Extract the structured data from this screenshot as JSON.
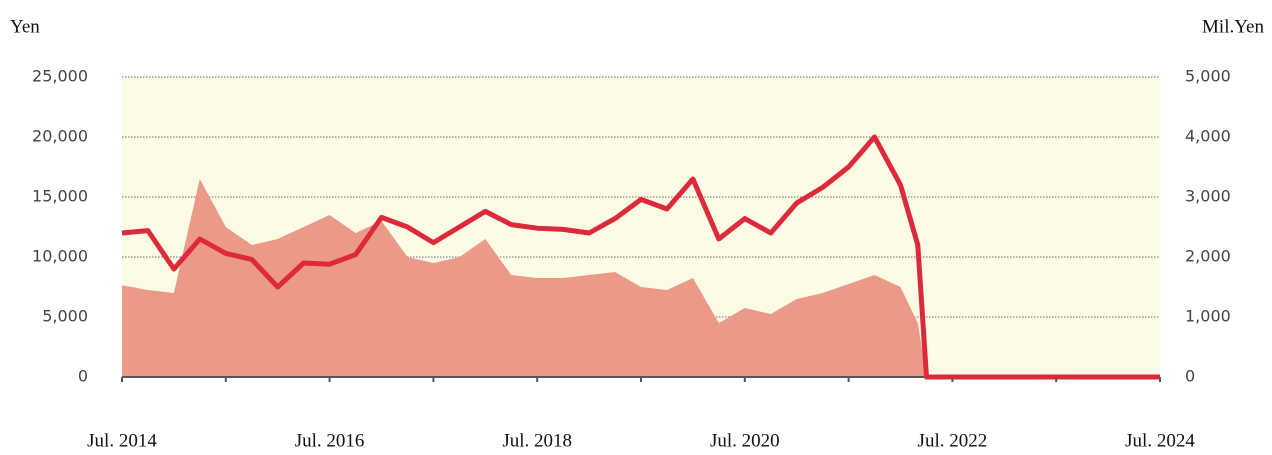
{
  "chart_data": {
    "type": "line",
    "y_label": "Yen",
    "y2_label": "Mil.Yen",
    "x": [
      "2014-07",
      "2014-10",
      "2015-01",
      "2015-04",
      "2015-07",
      "2015-10",
      "2016-01",
      "2016-04",
      "2016-07",
      "2016-10",
      "2017-01",
      "2017-04",
      "2017-07",
      "2017-10",
      "2018-01",
      "2018-04",
      "2018-07",
      "2018-10",
      "2019-01",
      "2019-04",
      "2019-07",
      "2019-10",
      "2020-01",
      "2020-04",
      "2020-07",
      "2020-10",
      "2021-01",
      "2021-04",
      "2021-07",
      "2021-10",
      "2022-01",
      "2022-03",
      "2022-04",
      "2024-07"
    ],
    "series": [
      {
        "type": "area",
        "axis": "y2",
        "color": "#ec9a88",
        "values": [
          1530,
          1450,
          1400,
          3300,
          2500,
          2200,
          2300,
          2500,
          2700,
          2400,
          2600,
          2000,
          1900,
          2000,
          2300,
          1700,
          1650,
          1650,
          1700,
          1750,
          1500,
          1450,
          1650,
          900,
          1150,
          1050,
          1300,
          1400,
          1550,
          1700,
          1500,
          900,
          0,
          0
        ]
      },
      {
        "type": "line",
        "axis": "y",
        "color": "#dc2a3a",
        "values": [
          12000,
          12200,
          9000,
          11500,
          10300,
          9800,
          7500,
          9500,
          9400,
          10200,
          13300,
          12500,
          11200,
          12500,
          13800,
          12700,
          12400,
          12300,
          12000,
          13200,
          14800,
          14000,
          16500,
          11500,
          13200,
          12000,
          14500,
          15800,
          17500,
          20000,
          16000,
          11000,
          0,
          0
        ]
      }
    ],
    "xlim": [
      "2014-07",
      "2024-07"
    ],
    "xticks": [
      {
        "value": "2014-07",
        "label": "Jul. 2014"
      },
      {
        "value": "2016-07",
        "label": "Jul. 2016"
      },
      {
        "value": "2018-07",
        "label": "Jul. 2018"
      },
      {
        "value": "2020-07",
        "label": "Jul. 2020"
      },
      {
        "value": "2022-07",
        "label": "Jul. 2022"
      },
      {
        "value": "2024-07",
        "label": "Jul. 2024"
      }
    ],
    "xminorticks": [
      "2015-07",
      "2017-07",
      "2019-07",
      "2021-07",
      "2023-07"
    ],
    "ylim": [
      0,
      25000
    ],
    "yticks": [
      0,
      {
        "value": 5000,
        "label": "5,000"
      },
      {
        "value": 10000,
        "label": "10,000"
      },
      {
        "value": 15000,
        "label": "15,000"
      },
      {
        "value": 20000,
        "label": "20,000"
      },
      {
        "value": 25000,
        "label": "25,000"
      }
    ],
    "y2lim": [
      0,
      5000
    ],
    "y2ticks": [
      0,
      {
        "value": 1000,
        "label": "1,000"
      },
      {
        "value": 2000,
        "label": "2,000"
      },
      {
        "value": 3000,
        "label": "3,000"
      },
      {
        "value": 4000,
        "label": "4,000"
      },
      {
        "value": 5000,
        "label": "5,000"
      }
    ],
    "grid": true,
    "background": "#fdfbe6"
  }
}
